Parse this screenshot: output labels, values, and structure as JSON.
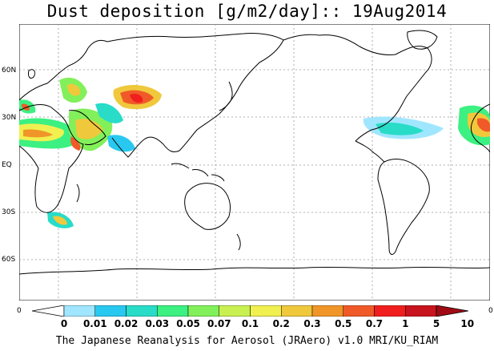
{
  "title": "Dust deposition [g/m2/day]:: 19Aug2014",
  "lat_labels": [
    "60N",
    "30N",
    "EQ",
    "30S",
    "60S"
  ],
  "edge_labels": {
    "left": "0",
    "right": "0"
  },
  "colorbar": {
    "labels": [
      "0",
      "0.01",
      "0.02",
      "0.03",
      "0.05",
      "0.07",
      "0.1",
      "0.2",
      "0.3",
      "0.5",
      "0.7",
      "1",
      "5",
      "10"
    ],
    "colors": [
      "#ffffff",
      "#a0e6ff",
      "#28c8f0",
      "#28dcc8",
      "#3cf082",
      "#82f05a",
      "#c8f050",
      "#f0f050",
      "#f0c83c",
      "#f09628",
      "#f05a28",
      "#f01e1e",
      "#c8141e",
      "#a00a14"
    ]
  },
  "footer": "The Japanese Reanalysis for Aerosol (JRAero) v1.0 MRI/KU_RIAM"
}
